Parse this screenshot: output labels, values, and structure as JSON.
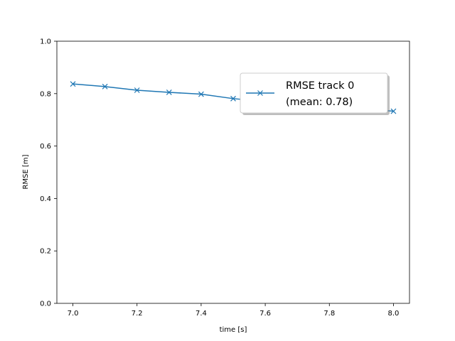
{
  "chart_data": {
    "type": "line",
    "title": "",
    "xlabel": "time [s]",
    "ylabel": "RMSE [m]",
    "xlim": [
      6.95,
      8.05
    ],
    "ylim": [
      0.0,
      1.0
    ],
    "xticks": [
      "7.0",
      "7.2",
      "7.4",
      "7.6",
      "7.8",
      "8.0"
    ],
    "yticks": [
      "0.0",
      "0.2",
      "0.4",
      "0.6",
      "0.8",
      "1.0"
    ],
    "grid": false,
    "legend_position": "upper-right",
    "series": [
      {
        "name": "RMSE track 0",
        "name_line2": "(mean: 0.78)",
        "color": "#1f77b4",
        "marker": "x",
        "x": [
          7.0,
          7.1,
          7.2,
          7.3,
          7.4,
          7.5,
          7.6,
          7.7,
          7.8,
          7.9,
          8.0
        ],
        "values": [
          0.837,
          0.827,
          0.813,
          0.805,
          0.798,
          0.781,
          0.77,
          0.76,
          0.75,
          0.742,
          0.733
        ]
      }
    ]
  }
}
